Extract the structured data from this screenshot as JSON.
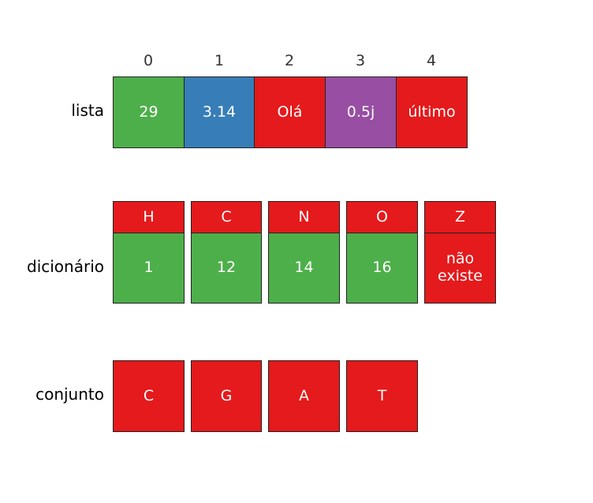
{
  "colors": {
    "red": "#e41a1c",
    "green": "#4daf4a",
    "blue": "#377eb8",
    "purple": "#984ea3"
  },
  "lista": {
    "label": "lista",
    "indices": [
      "0",
      "1",
      "2",
      "3",
      "4"
    ],
    "items": [
      {
        "value": "29",
        "color": "green"
      },
      {
        "value": "3.14",
        "color": "blue"
      },
      {
        "value": "Olá",
        "color": "red"
      },
      {
        "value": "0.5j",
        "color": "purple"
      },
      {
        "value": "último",
        "color": "red"
      }
    ]
  },
  "dicionario": {
    "label": "dicionário",
    "entries": [
      {
        "key": "H",
        "value": "1",
        "value_color": "green"
      },
      {
        "key": "C",
        "value": "12",
        "value_color": "green"
      },
      {
        "key": "N",
        "value": "14",
        "value_color": "green"
      },
      {
        "key": "O",
        "value": "16",
        "value_color": "green"
      },
      {
        "key": "Z",
        "value": "não\nexiste",
        "value_color": "red"
      }
    ]
  },
  "conjunto": {
    "label": "conjunto",
    "items": [
      "C",
      "G",
      "A",
      "T"
    ]
  }
}
